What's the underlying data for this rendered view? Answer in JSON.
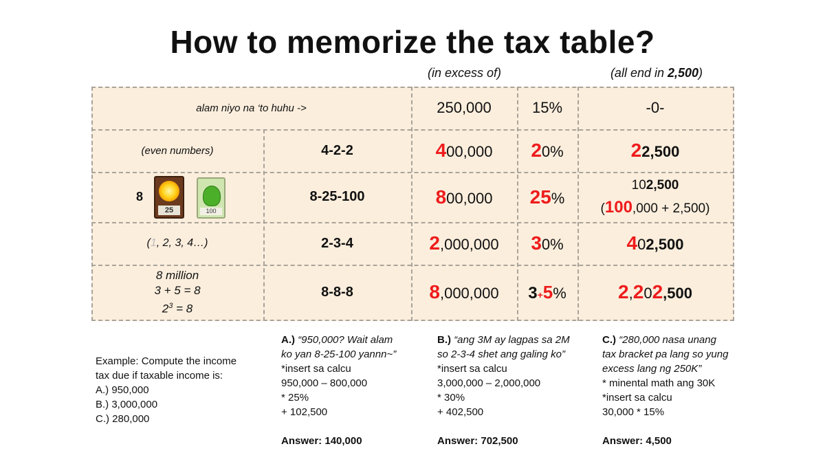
{
  "title": "How to memorize the tax table?",
  "headers": {
    "in_excess": "(in excess of)",
    "all_end_prefix": "(all end in ",
    "all_end_bold": "2,500",
    "all_end_suffix": ")"
  },
  "rows": [
    {
      "desc": "alam niyo na ‘to huhu ->",
      "excess": "250,000",
      "rate": "15%",
      "fixed": "-0-"
    },
    {
      "desc": "(even numbers)",
      "pattern": "4-2-2",
      "excess_red": "4",
      "excess_rest": "00,000",
      "rate_red": "2",
      "rate_rest": "0%",
      "fixed_red": "2",
      "fixed_rest": "2,500"
    },
    {
      "desc_num": "8",
      "card_sun_label": "25",
      "card_pea_label": "100",
      "pattern": "8-25-100",
      "excess_red": "8",
      "excess_rest": "00,000",
      "rate_red": "25",
      "rate_rest": "%",
      "fixed_line1_a": "10",
      "fixed_line1_b": "2,500",
      "fixed_line2_open": "(",
      "fixed_line2_red": "100",
      "fixed_line2_rest": ",000 + 2,500)"
    },
    {
      "desc_open": "(",
      "desc_faded": "1",
      "desc_rest": ", 2, 3, 4…)",
      "pattern": "2-3-4",
      "excess_red": "2",
      "excess_rest": ",000,000",
      "rate_red": "3",
      "rate_rest": "0%",
      "fixed_red": "4",
      "fixed_rest1": "0",
      "fixed_rest2": "2,500"
    },
    {
      "desc_l1": "8 million",
      "desc_l2": "3 + 5 = 8",
      "desc_l3_base": "2",
      "desc_l3_sup": "3",
      "desc_l3_rest": " = 8",
      "pattern": "8-8-8",
      "excess_red": "8",
      "excess_rest": ",000,000",
      "rate_a": "3",
      "rate_plus": "+",
      "rate_b": "5",
      "rate_pct": "%",
      "fixed_a": "2",
      "fixed_b": ",",
      "fixed_c": "2",
      "fixed_d": "0",
      "fixed_e": "2",
      "fixed_f": ",500"
    }
  ],
  "example": {
    "line1": "Example: Compute the income",
    "line2": "tax due if taxable income is:",
    "a": "A.) 950,000",
    "b": "B.) 3,000,000",
    "c": "C.) 280,000"
  },
  "solutions": {
    "a": {
      "label": "A.)",
      "quote1": " “950,000? Wait alam",
      "quote2": "ko yan 8-25-100 yannn~”",
      "l1": "*insert sa calcu",
      "l2": "950,000 – 800,000",
      "l3": "* 25%",
      "l4": "+ 102,500",
      "answer": "Answer: 140,000"
    },
    "b": {
      "label": "B.)",
      "quote1": " “ang 3M ay lagpas sa 2M",
      "quote2": "so 2-3-4 shet ang galing ko”",
      "l1": "*insert sa calcu",
      "l2": "3,000,000 – 2,000,000",
      "l3": "* 30%",
      "l4": "+ 402,500",
      "answer": "Answer: 702,500"
    },
    "c": {
      "label": "C.)",
      "quote1": " “280,000 nasa unang",
      "quote2": "tax bracket pa lang so yung",
      "quote3": "excess lang ng 250K”",
      "l1": "* minental math ang 30K",
      "l2": "*insert sa calcu",
      "l3": "30,000 * 15%",
      "answer": "Answer: 4,500"
    }
  },
  "colors": {
    "accent_red": "#ee1c1c",
    "cell_bg": "#fbeedd",
    "border": "#a9a39a"
  }
}
